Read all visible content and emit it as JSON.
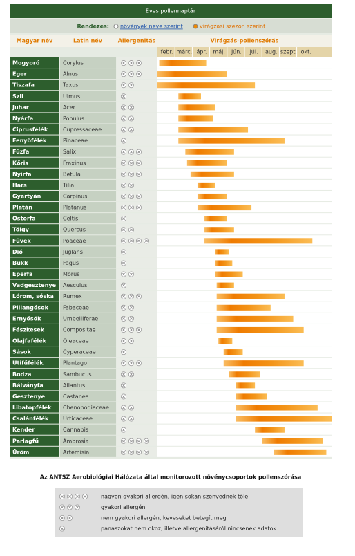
{
  "title": "Éves pollennaptár",
  "sort": {
    "label": "Rendezés:",
    "options": [
      "növények neve szerint",
      "virágzási szezon szerint"
    ]
  },
  "headers": [
    "Magyar név",
    "Latin név",
    "Allergenitás",
    "Virágzás-pollenszórás"
  ],
  "months": [
    "febr.",
    "márc.",
    "ápr.",
    "máj.",
    "jún.",
    "júl.",
    "aug.",
    "szept.",
    "okt."
  ],
  "rows": [
    {
      "name": "Mogyoró",
      "latin": "Corylus",
      "allergen": 3,
      "start": 0.1,
      "end": 2.8
    },
    {
      "name": "Éger",
      "latin": "Alnus",
      "allergen": 3,
      "start": 0,
      "end": 4.0
    },
    {
      "name": "Tiszafa",
      "latin": "Taxus",
      "allergen": 2,
      "start": 0,
      "end": 5.6
    },
    {
      "name": "Szil",
      "latin": "Ulmus",
      "allergen": 1,
      "start": 1.2,
      "end": 2.5
    },
    {
      "name": "Juhar",
      "latin": "Acer",
      "allergen": 2,
      "start": 1.2,
      "end": 3.3
    },
    {
      "name": "Nyárfa",
      "latin": "Populus",
      "allergen": 2,
      "start": 1.2,
      "end": 3.2
    },
    {
      "name": "Ciprusfélék",
      "latin": "Cupressaceae",
      "allergen": 2,
      "start": 1.2,
      "end": 5.2
    },
    {
      "name": "Fenyőfélék",
      "latin": "Pinaceae",
      "allergen": 1,
      "start": 1.2,
      "end": 7.3
    },
    {
      "name": "Fűzfa",
      "latin": "Salix",
      "allergen": 3,
      "start": 1.6,
      "end": 4.4
    },
    {
      "name": "Kőris",
      "latin": "Fraxinus",
      "allergen": 3,
      "start": 1.7,
      "end": 4.0
    },
    {
      "name": "Nyírfa",
      "latin": "Betula",
      "allergen": 3,
      "start": 1.9,
      "end": 4.4
    },
    {
      "name": "Hárs",
      "latin": "Tilia",
      "allergen": 2,
      "start": 2.3,
      "end": 3.3
    },
    {
      "name": "Gyertyán",
      "latin": "Carpinus",
      "allergen": 3,
      "start": 2.3,
      "end": 4.0
    },
    {
      "name": "Platán",
      "latin": "Platanus",
      "allergen": 3,
      "start": 2.3,
      "end": 5.4
    },
    {
      "name": "Ostorfa",
      "latin": "Celtis",
      "allergen": 1,
      "start": 2.7,
      "end": 4.0
    },
    {
      "name": "Tölgy",
      "latin": "Quercus",
      "allergen": 2,
      "start": 2.7,
      "end": 4.4
    },
    {
      "name": "Fűvek",
      "latin": "Poaceae",
      "allergen": 4,
      "start": 2.7,
      "end": 8.9
    },
    {
      "name": "Dió",
      "latin": "Juglans",
      "allergen": 1,
      "start": 3.3,
      "end": 4.1
    },
    {
      "name": "Bükk",
      "latin": "Fagus",
      "allergen": 1,
      "start": 3.3,
      "end": 4.3
    },
    {
      "name": "Eperfa",
      "latin": "Morus",
      "allergen": 2,
      "start": 3.3,
      "end": 4.9
    },
    {
      "name": "Vadgesztenye",
      "latin": "Aesculus",
      "allergen": 1,
      "start": 3.4,
      "end": 4.4
    },
    {
      "name": "Lórom, sóska",
      "latin": "Rumex",
      "allergen": 3,
      "start": 3.4,
      "end": 7.3
    },
    {
      "name": "Pillangósok",
      "latin": "Fabaceae",
      "allergen": 2,
      "start": 3.4,
      "end": 6.5
    },
    {
      "name": "Ernyősök",
      "latin": "Umbelliferae",
      "allergen": 2,
      "start": 3.4,
      "end": 7.8
    },
    {
      "name": "Fészkesek",
      "latin": "Compositae",
      "allergen": 3,
      "start": 3.4,
      "end": 8.4
    },
    {
      "name": "Olajfafélék",
      "latin": "Oleaceae",
      "allergen": 2,
      "start": 3.5,
      "end": 4.3
    },
    {
      "name": "Sások",
      "latin": "Cyperaceae",
      "allergen": 1,
      "start": 3.8,
      "end": 4.9
    },
    {
      "name": "Útifűfélék",
      "latin": "Plantago",
      "allergen": 3,
      "start": 3.8,
      "end": 8.4
    },
    {
      "name": "Bodza",
      "latin": "Sambucus",
      "allergen": 2,
      "start": 4.1,
      "end": 5.9
    },
    {
      "name": "Bálványfa",
      "latin": "Ailantus",
      "allergen": 1,
      "start": 4.5,
      "end": 5.6
    },
    {
      "name": "Gesztenye",
      "latin": "Castanea",
      "allergen": 1,
      "start": 4.5,
      "end": 6.3
    },
    {
      "name": "Libatopfélék",
      "latin": "Chenopodiaceae",
      "allergen": 2,
      "start": 4.5,
      "end": 9.2
    },
    {
      "name": "Csalánfélék",
      "latin": "Urticaceae",
      "allergen": 2,
      "start": 4.5,
      "end": 10
    },
    {
      "name": "Kender",
      "latin": "Cannabis",
      "allergen": 1,
      "start": 5.6,
      "end": 7.3
    },
    {
      "name": "Parlagfű",
      "latin": "Ambrosia",
      "allergen": 4,
      "start": 6.0,
      "end": 9.5
    },
    {
      "name": "Üröm",
      "latin": "Artemisia",
      "allergen": 4,
      "start": 6.7,
      "end": 9.7
    }
  ],
  "caption": "Az ÁNTSZ Aerobiológiai Hálózata által monitorozott növénycsoportok pollenszórása",
  "legend": [
    {
      "icons": 4,
      "text": "nagyon gyakori allergén, igen sokan szenvednek tőle"
    },
    {
      "icons": 3,
      "text": "gyakori allergén"
    },
    {
      "icons": 2,
      "text": "nem gyakori allergén, keveseket betegít meg"
    },
    {
      "icons": 1,
      "text": "panaszokat nem okoz, illetve allergenitásáról nincsenek adatok"
    }
  ]
}
